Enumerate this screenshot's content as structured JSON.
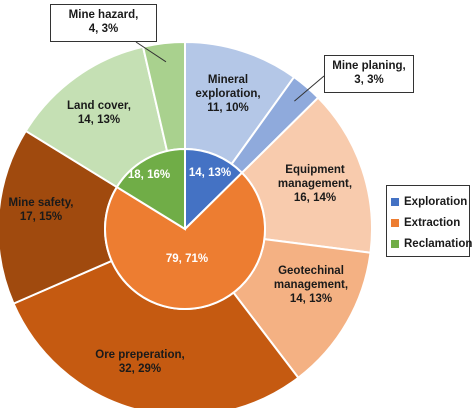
{
  "chart_data": {
    "type": "pie",
    "variant": "nested-donut",
    "title": "",
    "legend_position": "right",
    "legend": [
      {
        "name": "Exploration",
        "color": "#4472C4"
      },
      {
        "name": "Extraction",
        "color": "#ED7D31"
      },
      {
        "name": "Reclamation",
        "color": "#70AD47"
      }
    ],
    "inner_ring": [
      {
        "name": "Exploration",
        "value": 14,
        "percent": 13,
        "label": "14, 13%",
        "color": "#4472C4"
      },
      {
        "name": "Extraction",
        "value": 79,
        "percent": 71,
        "label": "79, 71%",
        "color": "#ED7D31"
      },
      {
        "name": "Reclamation",
        "value": 18,
        "percent": 16,
        "label": "18, 16%",
        "color": "#70AD47"
      }
    ],
    "outer_ring": [
      {
        "name": "Mineral exploration",
        "lines": [
          "Mineral",
          "exploration,",
          "11, 10%"
        ],
        "value": 11,
        "percent": 10,
        "group": "Exploration",
        "color": "#B4C7E7",
        "callout": false
      },
      {
        "name": "Mine planing",
        "lines": [
          "Mine planing,",
          "3, 3%"
        ],
        "value": 3,
        "percent": 3,
        "group": "Exploration",
        "color": "#8FAADC",
        "callout": true
      },
      {
        "name": "Equipment management",
        "lines": [
          "Equipment",
          "management,",
          "16, 14%"
        ],
        "value": 16,
        "percent": 14,
        "group": "Extraction",
        "color": "#F8CBAD",
        "callout": false
      },
      {
        "name": "Geotechinal management",
        "lines": [
          "Geotechinal",
          "management,",
          "14, 13%"
        ],
        "value": 14,
        "percent": 13,
        "group": "Extraction",
        "color": "#F4B183",
        "callout": false
      },
      {
        "name": "Ore preperation",
        "lines": [
          "Ore preperation,",
          "32, 29%"
        ],
        "value": 32,
        "percent": 29,
        "group": "Extraction",
        "color": "#C55A11",
        "callout": false
      },
      {
        "name": "Mine safety",
        "lines": [
          "Mine safety,",
          "17, 15%"
        ],
        "value": 17,
        "percent": 15,
        "group": "Extraction",
        "color": "#A04A0E",
        "callout": false
      },
      {
        "name": "Land cover",
        "lines": [
          "Land cover,",
          "14, 13%"
        ],
        "value": 14,
        "percent": 13,
        "group": "Reclamation",
        "color": "#C5E0B4",
        "callout": false
      },
      {
        "name": "Mine hazard",
        "lines": [
          "Mine hazard,",
          "4, 3%"
        ],
        "value": 4,
        "percent": 3,
        "group": "Reclamation",
        "color": "#A9D18E",
        "callout": true
      }
    ]
  }
}
